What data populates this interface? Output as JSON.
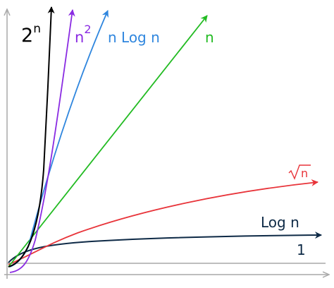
{
  "labels": {
    "exp": {
      "base": "2",
      "sup": "n"
    },
    "quad": {
      "base": "n",
      "sup": "2"
    },
    "nlogn": "n Log n",
    "linear": "n",
    "sqrt": "n",
    "log": "Log n",
    "const": "1"
  },
  "colors": {
    "axis": "#a9a9a9",
    "exp": "#000000",
    "quad": "#8a2be2",
    "nlogn": "#2f86de",
    "linear": "#22bb22",
    "sqrt": "#e8343a",
    "log": "#0e2a46",
    "const": "#0e2a46"
  }
}
